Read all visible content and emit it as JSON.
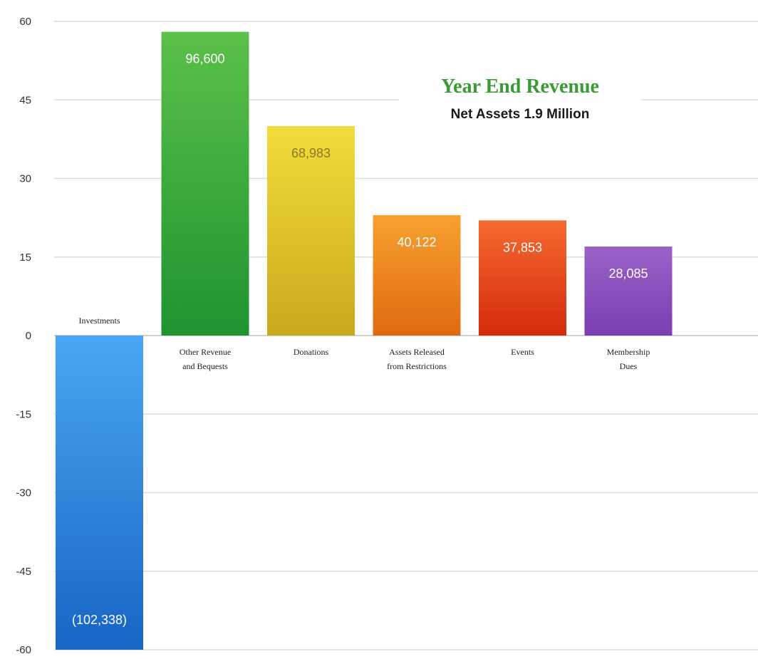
{
  "chart_data": {
    "type": "bar",
    "title": "Year End Revenue",
    "subtitle": "Net Assets 1.9 Million",
    "categories": [
      "Investments",
      "Other Revenue and Bequests",
      "Donations",
      "Assets Released from Restrictions",
      "Events",
      "Membership Dues"
    ],
    "category_lines": [
      [
        "Investments"
      ],
      [
        "Other Revenue",
        "and Bequests"
      ],
      [
        "Donations"
      ],
      [
        "Assets Released",
        "from Restrictions"
      ],
      [
        "Events"
      ],
      [
        "Membership",
        "Dues"
      ]
    ],
    "values": [
      -60,
      58,
      40,
      23,
      22,
      17
    ],
    "data_labels": [
      "(102,338)",
      "96,600",
      "68,983",
      "40,122",
      "37,853",
      "28,085"
    ],
    "bar_colors": [
      [
        "#4aa6f2",
        "#1865c4"
      ],
      [
        "#5cc04a",
        "#1e9330"
      ],
      [
        "#f2dc3a",
        "#c9a81e"
      ],
      [
        "#f7a030",
        "#e06a10"
      ],
      [
        "#f56a30",
        "#d42a0c"
      ],
      [
        "#9a62c8",
        "#7a3eb0"
      ]
    ],
    "label_colors": [
      "#ffffff",
      "#ffffff",
      "#8a7a2a",
      "#ffffff",
      "#ffffff",
      "#ffffff"
    ],
    "ylim": [
      -60,
      60
    ],
    "yticks": [
      60,
      45,
      30,
      15,
      0,
      -15,
      -30,
      -45,
      -60
    ],
    "grid": true,
    "xlabel": "",
    "ylabel": ""
  }
}
